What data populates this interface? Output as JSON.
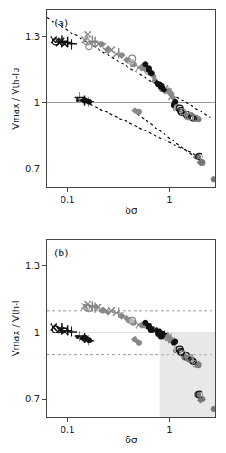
{
  "chart_data": [
    {
      "type": "scatter",
      "log": "x",
      "grid": false,
      "x_label": "δσ",
      "y_label": "Vmax / Vth-lb",
      "annotation": "(a)",
      "xlim": [
        0.063,
        2.8
      ],
      "ylim": [
        0.62,
        1.42
      ],
      "xticks": [
        0.1,
        1
      ],
      "yticks": [
        0.7,
        1,
        1.3
      ],
      "hlines": [
        {
          "value": 1.0,
          "color": "#999999",
          "line_style": "solid"
        }
      ],
      "series": [
        {
          "type": "line",
          "line_style": "dotted",
          "color": "#000000",
          "x": [
            0.063,
            2.5
          ],
          "values": [
            1.385,
            0.935
          ]
        },
        {
          "type": "line",
          "line_style": "dotted",
          "color": "#000000",
          "x": [
            0.12,
            2.0
          ],
          "values": [
            1.025,
            0.755
          ]
        },
        {
          "type": "line",
          "line_style": "dotted",
          "color": "#000000",
          "x": [
            0.44,
            2.15
          ],
          "values": [
            0.965,
            0.725
          ]
        },
        {
          "marker": "x",
          "color": "#111111",
          "x": [
            0.073,
            0.083,
            0.094,
            0.087
          ],
          "values": [
            1.285,
            1.27,
            1.265,
            1.28
          ]
        },
        {
          "marker": "plus",
          "color": "#111111",
          "x": [
            0.1,
            0.11,
            0.089
          ],
          "values": [
            1.275,
            1.265,
            1.28
          ]
        },
        {
          "marker": "open_circle",
          "color": "#111111",
          "x": [
            0.077
          ],
          "values": [
            1.275
          ]
        },
        {
          "marker": "point",
          "color": "#111111",
          "x": [
            0.125,
            0.138
          ],
          "values": [
            1.01,
            1.01
          ]
        },
        {
          "marker": "plus",
          "color": "#111111",
          "x": [
            0.132,
            0.147,
            0.162
          ],
          "values": [
            1.025,
            1.01,
            1.005
          ]
        },
        {
          "marker": "circle",
          "color": "#111111",
          "x": [
            0.148,
            0.163
          ],
          "values": [
            1.01,
            1.005
          ]
        },
        {
          "marker": "x",
          "color": "#888888",
          "x": [
            0.148,
            0.158,
            0.2,
            0.24,
            0.27,
            0.3
          ],
          "values": [
            1.285,
            1.31,
            1.265,
            1.235,
            1.24,
            1.22
          ]
        },
        {
          "marker": "plus",
          "color": "#888888",
          "x": [
            0.176,
            0.186,
            0.32
          ],
          "values": [
            1.28,
            1.275,
            1.225
          ]
        },
        {
          "marker": "open_circle",
          "color": "#888888",
          "x": [
            0.162
          ],
          "values": [
            1.255
          ]
        },
        {
          "marker": "open_circle",
          "color": "#888888",
          "x": [
            0.155
          ],
          "values": [
            1.275
          ]
        },
        {
          "marker": "diamond",
          "color": "#888888",
          "x": [
            0.22,
            0.25,
            0.34,
            0.38,
            0.455,
            0.48
          ],
          "values": [
            1.265,
            1.245,
            1.215,
            1.195,
            0.965,
            0.96
          ]
        },
        {
          "marker": "circle",
          "color": "#888888",
          "x": [
            0.4,
            0.5
          ],
          "values": [
            1.19,
            0.96
          ]
        },
        {
          "marker": "circle",
          "color": "#888888",
          "x": [
            0.44,
            0.55,
            0.72,
            0.85
          ],
          "values": [
            1.175,
            1.16,
            1.1,
            1.065
          ]
        },
        {
          "marker": "circle",
          "color": "#bbbbbb",
          "x": [
            0.42,
            0.6
          ],
          "values": [
            1.185,
            1.14
          ]
        },
        {
          "marker": "open_circle",
          "color": "#888888",
          "x": [
            0.43
          ],
          "values": [
            1.2
          ]
        },
        {
          "marker": "diamond",
          "color": "#888888",
          "x": [
            0.57,
            0.7,
            0.86,
            0.955,
            1.005,
            1.025,
            1.085
          ],
          "values": [
            1.155,
            1.12,
            1.06,
            1.055,
            1.05,
            1.04,
            1.025
          ]
        },
        {
          "marker": "x",
          "color": "#888888",
          "x": [
            0.5,
            0.905,
            0.93,
            0.972,
            1.05
          ],
          "values": [
            1.16,
            1.065,
            1.055,
            1.052,
            1.03
          ]
        },
        {
          "marker": "circle",
          "color": "#111111",
          "x": [
            0.58,
            0.625,
            0.66,
            0.785,
            0.825,
            1.105,
            1.135
          ],
          "values": [
            1.175,
            1.155,
            1.135,
            1.085,
            1.075,
            0.99,
            1.005
          ]
        },
        {
          "marker": "diamond",
          "color": "#111111",
          "x": [
            0.755,
            0.805,
            0.882
          ],
          "values": [
            1.09,
            1.08,
            1.06
          ]
        },
        {
          "marker": "circle",
          "color": "#777777",
          "x": [
            1.155,
            1.185,
            1.395,
            1.505,
            1.905,
            1.885,
            2.1,
            2.7
          ],
          "values": [
            0.975,
            0.98,
            0.95,
            0.94,
            0.925,
            0.755,
            0.73,
            0.655
          ]
        },
        {
          "marker": "circle",
          "color": "#cccccc",
          "x": [
            1.205,
            1.225
          ],
          "values": [
            0.975,
            0.975
          ]
        },
        {
          "marker": "open_circle",
          "color": "#111111",
          "x": [
            1.255,
            1.285,
            1.308,
            1.455,
            1.655,
            1.705,
            1.955
          ],
          "values": [
            0.975,
            0.965,
            0.958,
            0.948,
            0.935,
            0.93,
            0.757
          ]
        },
        {
          "marker": "open_circle",
          "color": "#888888",
          "x": [
            1.355,
            1.555,
            1.605,
            1.805
          ],
          "values": [
            0.96,
            0.935,
            0.94,
            0.93
          ]
        },
        {
          "marker": "diamond",
          "color": "#777777",
          "x": [
            2.0
          ],
          "values": [
            0.73
          ]
        }
      ]
    },
    {
      "type": "scatter",
      "log": "x",
      "grid": false,
      "x_label": "δσ",
      "y_label": "Vmax / Vth-l",
      "annotation": "(b)",
      "xlim": [
        0.063,
        2.8
      ],
      "ylim": [
        0.62,
        1.42
      ],
      "xticks": [
        0.1,
        1
      ],
      "yticks": [
        0.7,
        1,
        1.3
      ],
      "shade": {
        "x": [
          0.8,
          2.8
        ],
        "y": [
          0.62,
          1.0
        ],
        "color": "#cccccc"
      },
      "hlines": [
        {
          "value": 1.0,
          "color": "#999999",
          "line_style": "solid"
        },
        {
          "value": 1.1,
          "color": "#999999",
          "line_style": "dotted"
        },
        {
          "value": 0.9,
          "color": "#999999",
          "line_style": "dotted"
        }
      ],
      "series": [
        {
          "marker": "x",
          "color": "#111111",
          "x": [
            0.073,
            0.083,
            0.094,
            0.087
          ],
          "values": [
            1.025,
            1.015,
            1.005,
            1.01
          ]
        },
        {
          "marker": "plus",
          "color": "#111111",
          "x": [
            0.089,
            0.1,
            0.11
          ],
          "values": [
            1.02,
            1.01,
            1.005
          ]
        },
        {
          "marker": "open_circle",
          "color": "#111111",
          "x": [
            0.077
          ],
          "values": [
            1.015
          ]
        },
        {
          "marker": "point",
          "color": "#111111",
          "x": [
            0.125,
            0.138
          ],
          "values": [
            0.98,
            0.975
          ]
        },
        {
          "marker": "plus",
          "color": "#111111",
          "x": [
            0.132,
            0.147,
            0.162
          ],
          "values": [
            0.985,
            0.975,
            0.965
          ]
        },
        {
          "marker": "circle",
          "color": "#111111",
          "x": [
            0.148,
            0.163
          ],
          "values": [
            0.975,
            0.965
          ]
        },
        {
          "marker": "x",
          "color": "#888888",
          "x": [
            0.148,
            0.158,
            0.2,
            0.24,
            0.27,
            0.3
          ],
          "values": [
            1.12,
            1.13,
            1.115,
            1.1,
            1.1,
            1.09
          ]
        },
        {
          "marker": "plus",
          "color": "#888888",
          "x": [
            0.176,
            0.186,
            0.32
          ],
          "values": [
            1.12,
            1.115,
            1.09
          ]
        },
        {
          "marker": "open_circle",
          "color": "#888888",
          "x": [
            0.162
          ],
          "values": [
            1.11
          ]
        },
        {
          "marker": "open_circle",
          "color": "#888888",
          "x": [
            0.155
          ],
          "values": [
            1.115
          ]
        },
        {
          "marker": "diamond",
          "color": "#888888",
          "x": [
            0.22,
            0.25,
            0.34,
            0.38,
            0.455,
            0.48
          ],
          "values": [
            1.1,
            1.09,
            1.075,
            1.065,
            0.97,
            0.96
          ]
        },
        {
          "marker": "circle",
          "color": "#888888",
          "x": [
            0.4,
            0.5
          ],
          "values": [
            1.055,
            0.955
          ]
        },
        {
          "marker": "circle",
          "color": "#888888",
          "x": [
            0.44,
            0.55,
            0.72,
            0.85
          ],
          "values": [
            1.045,
            1.035,
            1.01,
            0.995
          ]
        },
        {
          "marker": "circle",
          "color": "#bbbbbb",
          "x": [
            0.42,
            0.6
          ],
          "values": [
            1.05,
            1.03
          ]
        },
        {
          "marker": "open_circle",
          "color": "#888888",
          "x": [
            0.43
          ],
          "values": [
            1.055
          ]
        },
        {
          "marker": "diamond",
          "color": "#888888",
          "x": [
            0.57,
            0.7,
            0.86,
            0.955,
            1.005,
            1.025,
            1.085
          ],
          "values": [
            1.035,
            1.015,
            0.99,
            0.98,
            0.975,
            0.965,
            0.96
          ]
        },
        {
          "marker": "x",
          "color": "#888888",
          "x": [
            0.5,
            0.905,
            0.93,
            0.972,
            1.05
          ],
          "values": [
            1.035,
            0.99,
            0.985,
            0.978,
            0.965
          ]
        },
        {
          "marker": "circle",
          "color": "#111111",
          "x": [
            0.58,
            0.625,
            0.66,
            0.785,
            0.825,
            1.105,
            1.135
          ],
          "values": [
            1.045,
            1.03,
            1.015,
            0.995,
            0.985,
            0.955,
            0.96
          ]
        },
        {
          "marker": "diamond",
          "color": "#111111",
          "x": [
            0.755,
            0.805,
            0.882
          ],
          "values": [
            1.01,
            1.005,
            0.995
          ]
        },
        {
          "marker": "circle",
          "color": "#777777",
          "x": [
            1.155,
            1.185,
            1.395,
            1.505,
            1.905,
            1.885,
            2.1,
            2.7
          ],
          "values": [
            0.92,
            0.925,
            0.89,
            0.885,
            0.855,
            0.72,
            0.7,
            0.655
          ]
        },
        {
          "marker": "circle",
          "color": "#cccccc",
          "x": [
            1.205,
            1.225
          ],
          "values": [
            0.925,
            0.92
          ]
        },
        {
          "marker": "open_circle",
          "color": "#111111",
          "x": [
            1.255,
            1.285,
            1.308,
            1.455,
            1.655,
            1.705,
            1.955
          ],
          "values": [
            0.925,
            0.915,
            0.91,
            0.895,
            0.875,
            0.87,
            0.72
          ]
        },
        {
          "marker": "open_circle",
          "color": "#888888",
          "x": [
            1.355,
            1.555,
            1.605,
            1.805
          ],
          "values": [
            0.905,
            0.88,
            0.885,
            0.86
          ]
        },
        {
          "marker": "diamond",
          "color": "#777777",
          "x": [
            2.0
          ],
          "values": [
            0.695
          ]
        }
      ]
    }
  ]
}
